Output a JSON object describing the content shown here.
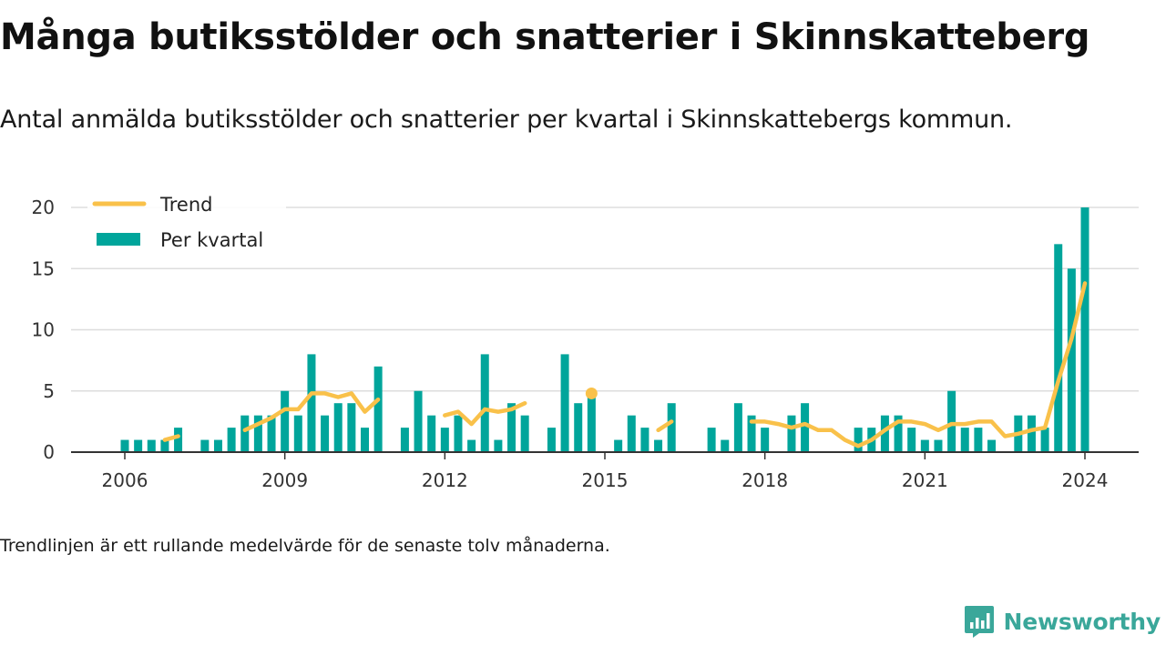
{
  "title": "Många butiksstölder och snatterier i Skinnskatteberg",
  "subtitle": "Antal anmälda butiksstölder och snatterier per kvartal i Skinnskattebergs kommun.",
  "footnote": "Trendlinjen är ett rullande medelvärde för de senaste tolv månaderna.",
  "brand": {
    "name": "Newsworthy",
    "icon": "newsworthy-logo-icon",
    "color": "#3aa79a"
  },
  "colors": {
    "bar": "#00a59b",
    "trend": "#f9c14a",
    "grid": "#dddddd",
    "axis": "#333333"
  },
  "chart_data": {
    "type": "bar",
    "ylim": [
      0,
      20
    ],
    "yticks": [
      0,
      5,
      10,
      15,
      20
    ],
    "xlim": [
      2005.5,
      2025.3
    ],
    "xticks": [
      2006,
      2009,
      2012,
      2015,
      2018,
      2021,
      2024
    ],
    "grid": true,
    "legend": {
      "position": "top-left",
      "trend_label": "Trend",
      "bars_label": "Per kvartal"
    },
    "series": [
      {
        "name": "Per kvartal",
        "type": "bar",
        "data": [
          {
            "x": 2006.0,
            "y": 1
          },
          {
            "x": 2006.25,
            "y": 1
          },
          {
            "x": 2006.5,
            "y": 1
          },
          {
            "x": 2006.75,
            "y": 1
          },
          {
            "x": 2007.0,
            "y": 2
          },
          {
            "x": 2007.5,
            "y": 1
          },
          {
            "x": 2007.75,
            "y": 1
          },
          {
            "x": 2008.0,
            "y": 2
          },
          {
            "x": 2008.25,
            "y": 3
          },
          {
            "x": 2008.5,
            "y": 3
          },
          {
            "x": 2008.75,
            "y": 3
          },
          {
            "x": 2009.0,
            "y": 5
          },
          {
            "x": 2009.25,
            "y": 3
          },
          {
            "x": 2009.5,
            "y": 8
          },
          {
            "x": 2009.75,
            "y": 3
          },
          {
            "x": 2010.0,
            "y": 4
          },
          {
            "x": 2010.25,
            "y": 4
          },
          {
            "x": 2010.5,
            "y": 2
          },
          {
            "x": 2010.75,
            "y": 7
          },
          {
            "x": 2011.25,
            "y": 2
          },
          {
            "x": 2011.5,
            "y": 5
          },
          {
            "x": 2011.75,
            "y": 3
          },
          {
            "x": 2012.0,
            "y": 2
          },
          {
            "x": 2012.25,
            "y": 3
          },
          {
            "x": 2012.5,
            "y": 1
          },
          {
            "x": 2012.75,
            "y": 8
          },
          {
            "x": 2013.0,
            "y": 1
          },
          {
            "x": 2013.25,
            "y": 4
          },
          {
            "x": 2013.5,
            "y": 3
          },
          {
            "x": 2014.0,
            "y": 2
          },
          {
            "x": 2014.25,
            "y": 8
          },
          {
            "x": 2014.5,
            "y": 4
          },
          {
            "x": 2014.75,
            "y": 5
          },
          {
            "x": 2015.25,
            "y": 1
          },
          {
            "x": 2015.5,
            "y": 3
          },
          {
            "x": 2015.75,
            "y": 2
          },
          {
            "x": 2016.0,
            "y": 1
          },
          {
            "x": 2016.25,
            "y": 4
          },
          {
            "x": 2017.0,
            "y": 2
          },
          {
            "x": 2017.25,
            "y": 1
          },
          {
            "x": 2017.5,
            "y": 4
          },
          {
            "x": 2017.75,
            "y": 3
          },
          {
            "x": 2018.0,
            "y": 2
          },
          {
            "x": 2018.5,
            "y": 3
          },
          {
            "x": 2018.75,
            "y": 4
          },
          {
            "x": 2019.75,
            "y": 2
          },
          {
            "x": 2020.0,
            "y": 2
          },
          {
            "x": 2020.25,
            "y": 3
          },
          {
            "x": 2020.5,
            "y": 3
          },
          {
            "x": 2020.75,
            "y": 2
          },
          {
            "x": 2021.0,
            "y": 1
          },
          {
            "x": 2021.25,
            "y": 1
          },
          {
            "x": 2021.5,
            "y": 5
          },
          {
            "x": 2021.75,
            "y": 2
          },
          {
            "x": 2022.0,
            "y": 2
          },
          {
            "x": 2022.25,
            "y": 1
          },
          {
            "x": 2022.75,
            "y": 3
          },
          {
            "x": 2023.0,
            "y": 3
          },
          {
            "x": 2023.25,
            "y": 2
          },
          {
            "x": 2023.5,
            "y": 17
          },
          {
            "x": 2023.75,
            "y": 15
          },
          {
            "x": 2024.0,
            "y": 20
          }
        ]
      },
      {
        "name": "Trend",
        "type": "line",
        "segments": [
          [
            {
              "x": 2006.75,
              "y": 1.0
            },
            {
              "x": 2007.0,
              "y": 1.3
            }
          ],
          [
            {
              "x": 2008.25,
              "y": 1.8
            },
            {
              "x": 2008.5,
              "y": 2.3
            },
            {
              "x": 2008.75,
              "y": 2.8
            },
            {
              "x": 2009.0,
              "y": 3.5
            },
            {
              "x": 2009.25,
              "y": 3.5
            },
            {
              "x": 2009.5,
              "y": 4.8
            },
            {
              "x": 2009.75,
              "y": 4.8
            },
            {
              "x": 2010.0,
              "y": 4.5
            },
            {
              "x": 2010.25,
              "y": 4.8
            },
            {
              "x": 2010.5,
              "y": 3.3
            },
            {
              "x": 2010.75,
              "y": 4.3
            }
          ],
          [
            {
              "x": 2012.0,
              "y": 3.0
            },
            {
              "x": 2012.25,
              "y": 3.3
            },
            {
              "x": 2012.5,
              "y": 2.3
            },
            {
              "x": 2012.75,
              "y": 3.5
            },
            {
              "x": 2013.0,
              "y": 3.3
            },
            {
              "x": 2013.25,
              "y": 3.5
            },
            {
              "x": 2013.5,
              "y": 4.0
            }
          ],
          [
            {
              "x": 2014.75,
              "y": 4.8
            }
          ],
          [
            {
              "x": 2016.0,
              "y": 1.8
            },
            {
              "x": 2016.25,
              "y": 2.5
            }
          ],
          [
            {
              "x": 2017.75,
              "y": 2.5
            },
            {
              "x": 2018.0,
              "y": 2.5
            },
            {
              "x": 2018.25,
              "y": 2.3
            },
            {
              "x": 2018.5,
              "y": 2.0
            },
            {
              "x": 2018.75,
              "y": 2.3
            },
            {
              "x": 2019.0,
              "y": 1.8
            },
            {
              "x": 2019.25,
              "y": 1.8
            },
            {
              "x": 2019.5,
              "y": 1.0
            },
            {
              "x": 2019.75,
              "y": 0.5
            },
            {
              "x": 2020.0,
              "y": 1.0
            },
            {
              "x": 2020.25,
              "y": 1.8
            },
            {
              "x": 2020.5,
              "y": 2.5
            },
            {
              "x": 2020.75,
              "y": 2.5
            },
            {
              "x": 2021.0,
              "y": 2.3
            },
            {
              "x": 2021.25,
              "y": 1.8
            },
            {
              "x": 2021.5,
              "y": 2.3
            },
            {
              "x": 2021.75,
              "y": 2.3
            },
            {
              "x": 2022.0,
              "y": 2.5
            },
            {
              "x": 2022.25,
              "y": 2.5
            },
            {
              "x": 2022.5,
              "y": 1.3
            },
            {
              "x": 2022.75,
              "y": 1.5
            },
            {
              "x": 2023.0,
              "y": 1.8
            },
            {
              "x": 2023.25,
              "y": 2.0
            },
            {
              "x": 2023.5,
              "y": 5.8
            },
            {
              "x": 2023.75,
              "y": 9.3
            },
            {
              "x": 2024.0,
              "y": 13.8
            }
          ]
        ]
      }
    ]
  }
}
